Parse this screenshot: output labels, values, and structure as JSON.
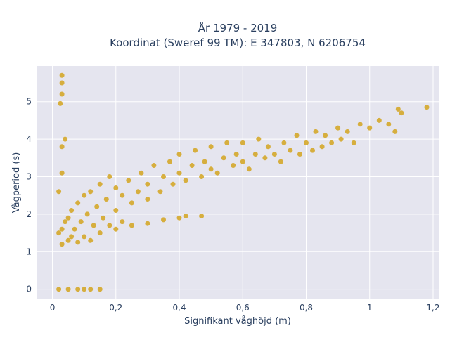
{
  "chart_data": {
    "type": "scatter",
    "title_line1": "År 1979 - 2019",
    "title_line2": "Koordinat (Sweref 99 TM): E 347803, N 6206754",
    "xlabel": "Signifikant våghöjd (m)",
    "ylabel": "Vågperiod (s)",
    "xlim": [
      -0.05,
      1.22
    ],
    "ylim": [
      -0.25,
      5.95
    ],
    "x_ticks": [
      0,
      0.2,
      0.4,
      0.6,
      0.8,
      1,
      1.2
    ],
    "x_tick_labels": [
      "0",
      "0,2",
      "0,4",
      "0,6",
      "0,8",
      "1",
      "1,2"
    ],
    "y_ticks": [
      0,
      1,
      2,
      3,
      4,
      5
    ],
    "y_tick_labels": [
      "0",
      "1",
      "2",
      "3",
      "4",
      "5"
    ],
    "grid": true,
    "marker_color": "#D4A41F",
    "background_color": "#E5E5EF",
    "series": [
      {
        "values": [
          [
            0.02,
            1.5
          ],
          [
            0.03,
            1.2
          ],
          [
            0.03,
            1.6
          ],
          [
            0.04,
            1.8
          ],
          [
            0.05,
            1.3
          ],
          [
            0.05,
            1.9
          ],
          [
            0.06,
            1.4
          ],
          [
            0.06,
            2.1
          ],
          [
            0.07,
            1.6
          ],
          [
            0.08,
            1.25
          ],
          [
            0.08,
            2.3
          ],
          [
            0.09,
            1.8
          ],
          [
            0.1,
            1.4
          ],
          [
            0.1,
            2.5
          ],
          [
            0.11,
            2.0
          ],
          [
            0.12,
            1.3
          ],
          [
            0.12,
            2.6
          ],
          [
            0.13,
            1.7
          ],
          [
            0.14,
            2.2
          ],
          [
            0.15,
            1.5
          ],
          [
            0.15,
            2.8
          ],
          [
            0.16,
            1.9
          ],
          [
            0.17,
            2.4
          ],
          [
            0.18,
            1.7
          ],
          [
            0.18,
            3.0
          ],
          [
            0.2,
            2.1
          ],
          [
            0.2,
            2.7
          ],
          [
            0.22,
            1.8
          ],
          [
            0.22,
            2.5
          ],
          [
            0.24,
            2.9
          ],
          [
            0.25,
            2.3
          ],
          [
            0.27,
            2.6
          ],
          [
            0.28,
            3.1
          ],
          [
            0.3,
            2.4
          ],
          [
            0.3,
            2.8
          ],
          [
            0.32,
            3.3
          ],
          [
            0.34,
            2.6
          ],
          [
            0.35,
            3.0
          ],
          [
            0.37,
            3.4
          ],
          [
            0.38,
            2.8
          ],
          [
            0.4,
            3.1
          ],
          [
            0.4,
            3.6
          ],
          [
            0.42,
            2.9
          ],
          [
            0.44,
            3.3
          ],
          [
            0.45,
            3.7
          ],
          [
            0.47,
            3.0
          ],
          [
            0.48,
            3.4
          ],
          [
            0.5,
            3.2
          ],
          [
            0.5,
            3.8
          ],
          [
            0.52,
            3.1
          ],
          [
            0.54,
            3.5
          ],
          [
            0.55,
            3.9
          ],
          [
            0.57,
            3.3
          ],
          [
            0.58,
            3.6
          ],
          [
            0.6,
            3.4
          ],
          [
            0.6,
            3.9
          ],
          [
            0.62,
            3.2
          ],
          [
            0.64,
            3.6
          ],
          [
            0.65,
            4.0
          ],
          [
            0.67,
            3.5
          ],
          [
            0.68,
            3.8
          ],
          [
            0.7,
            3.6
          ],
          [
            0.72,
            3.4
          ],
          [
            0.73,
            3.9
          ],
          [
            0.75,
            3.7
          ],
          [
            0.77,
            4.1
          ],
          [
            0.78,
            3.6
          ],
          [
            0.8,
            3.9
          ],
          [
            0.82,
            3.7
          ],
          [
            0.83,
            4.2
          ],
          [
            0.85,
            3.8
          ],
          [
            0.86,
            4.1
          ],
          [
            0.88,
            3.9
          ],
          [
            0.9,
            4.3
          ],
          [
            0.91,
            4.0
          ],
          [
            0.93,
            4.2
          ],
          [
            0.95,
            3.9
          ],
          [
            0.97,
            4.4
          ],
          [
            1.0,
            4.3
          ],
          [
            1.03,
            4.5
          ],
          [
            1.06,
            4.4
          ],
          [
            1.08,
            4.2
          ],
          [
            1.1,
            4.7
          ],
          [
            1.09,
            4.8
          ],
          [
            1.18,
            4.85
          ],
          [
            0.2,
            1.6
          ],
          [
            0.25,
            1.7
          ],
          [
            0.3,
            1.75
          ],
          [
            0.35,
            1.85
          ],
          [
            0.4,
            1.9
          ],
          [
            0.42,
            1.95
          ],
          [
            0.47,
            1.95
          ],
          [
            0.02,
            2.6
          ],
          [
            0.03,
            3.1
          ],
          [
            0.03,
            3.8
          ],
          [
            0.04,
            4.0
          ],
          [
            0.025,
            4.95
          ],
          [
            0.03,
            5.2
          ],
          [
            0.03,
            5.5
          ],
          [
            0.03,
            5.7
          ],
          [
            0.02,
            0
          ],
          [
            0.05,
            0
          ],
          [
            0.08,
            0
          ],
          [
            0.1,
            0
          ],
          [
            0.12,
            0
          ],
          [
            0.15,
            0
          ]
        ]
      }
    ]
  }
}
